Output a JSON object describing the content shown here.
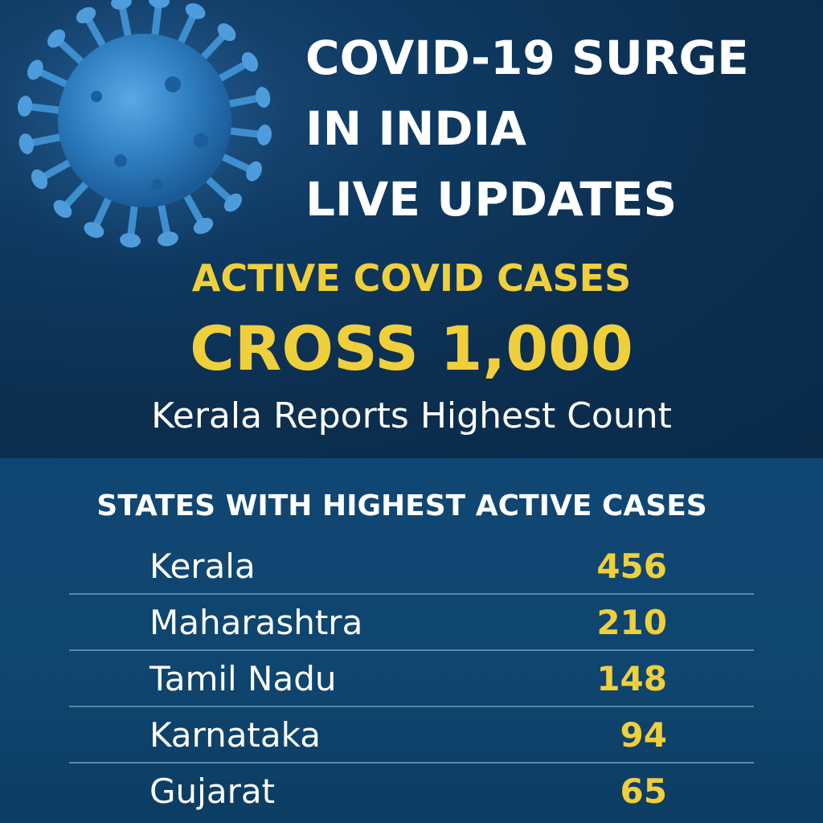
{
  "headline": {
    "line1": "COVID-19 SURGE",
    "line2": "IN INDIA",
    "line3": "LIVE UPDATES"
  },
  "highlight": {
    "line1": "ACTIVE COVID CASES",
    "line2": "CROSS 1,000",
    "line3": "Kerala Reports Highest Count"
  },
  "table": {
    "title": "STATES WITH HIGHEST ACTIVE CASES",
    "rows": [
      {
        "state": "Kerala",
        "count": "456"
      },
      {
        "state": "Maharashtra",
        "count": "210"
      },
      {
        "state": "Tamil Nadu",
        "count": "148"
      },
      {
        "state": "Karnataka",
        "count": "94"
      },
      {
        "state": "Gujarat",
        "count": "65"
      }
    ]
  },
  "colors": {
    "accent_yellow": "#f0cf3c",
    "background_dark": "#0c2f50",
    "background_panel": "#104672",
    "virus_blue": "#3e8fd0"
  },
  "icons": {
    "virus": "virus-illustration-icon"
  }
}
